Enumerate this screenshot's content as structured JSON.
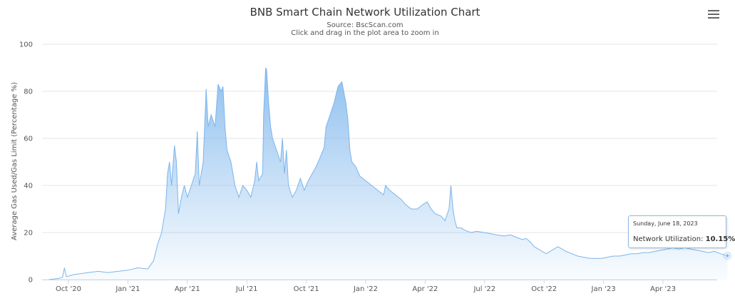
{
  "chart_data": {
    "type": "area",
    "title": "BNB Smart Chain Network Utilization Chart",
    "subtitle": "Source: BscScan.com",
    "instruction": "Click and drag in the plot area to zoom in",
    "ylabel": "Average Gas Used/Gas Limit (Percentage %)",
    "xlabel": "",
    "ylim": [
      0,
      100
    ],
    "yticks": [
      0,
      20,
      40,
      60,
      80,
      100
    ],
    "xticks": [
      {
        "month": 1,
        "label": "Oct '20"
      },
      {
        "month": 4,
        "label": "Jan '21"
      },
      {
        "month": 7,
        "label": "Apr '21"
      },
      {
        "month": 10,
        "label": "Jul '21"
      },
      {
        "month": 13,
        "label": "Oct '21"
      },
      {
        "month": 16,
        "label": "Jan '22"
      },
      {
        "month": 19,
        "label": "Apr '22"
      },
      {
        "month": 22,
        "label": "Jul '22"
      },
      {
        "month": 25,
        "label": "Oct '22"
      },
      {
        "month": 28,
        "label": "Jan '23"
      },
      {
        "month": 31,
        "label": "Apr '23"
      }
    ],
    "x_domain": [
      0,
      34.25
    ],
    "series": [
      {
        "name": "Network Utilization",
        "color": "#7cb5ec",
        "x_unit": "months since Sep 1, 2020",
        "points": [
          [
            0.0,
            0.0
          ],
          [
            0.5,
            0.5
          ],
          [
            0.7,
            1.0
          ],
          [
            0.8,
            5.0
          ],
          [
            0.9,
            1.2
          ],
          [
            1.2,
            2.0
          ],
          [
            1.6,
            2.5
          ],
          [
            2.0,
            3.0
          ],
          [
            2.5,
            3.5
          ],
          [
            3.0,
            3.0
          ],
          [
            3.5,
            3.5
          ],
          [
            4.0,
            4.0
          ],
          [
            4.5,
            5.0
          ],
          [
            5.0,
            4.5
          ],
          [
            5.3,
            8.0
          ],
          [
            5.5,
            15.0
          ],
          [
            5.7,
            20.0
          ],
          [
            5.9,
            30.0
          ],
          [
            6.0,
            45.0
          ],
          [
            6.1,
            50.0
          ],
          [
            6.2,
            40.0
          ],
          [
            6.35,
            57.0
          ],
          [
            6.45,
            50.0
          ],
          [
            6.55,
            28.0
          ],
          [
            6.7,
            35.0
          ],
          [
            6.85,
            40.0
          ],
          [
            7.0,
            35.0
          ],
          [
            7.2,
            40.0
          ],
          [
            7.4,
            45.0
          ],
          [
            7.5,
            63.0
          ],
          [
            7.6,
            40.0
          ],
          [
            7.8,
            50.0
          ],
          [
            7.95,
            81.0
          ],
          [
            8.05,
            65.0
          ],
          [
            8.2,
            70.0
          ],
          [
            8.4,
            65.0
          ],
          [
            8.55,
            83.0
          ],
          [
            8.7,
            80.0
          ],
          [
            8.8,
            82.0
          ],
          [
            8.9,
            65.0
          ],
          [
            9.0,
            55.0
          ],
          [
            9.2,
            50.0
          ],
          [
            9.4,
            40.0
          ],
          [
            9.6,
            35.0
          ],
          [
            9.8,
            40.0
          ],
          [
            10.0,
            38.0
          ],
          [
            10.2,
            35.0
          ],
          [
            10.4,
            42.0
          ],
          [
            10.5,
            50.0
          ],
          [
            10.6,
            42.0
          ],
          [
            10.8,
            45.0
          ],
          [
            10.85,
            70.0
          ],
          [
            10.9,
            80.0
          ],
          [
            10.95,
            90.0
          ],
          [
            11.0,
            89.0
          ],
          [
            11.1,
            75.0
          ],
          [
            11.2,
            65.0
          ],
          [
            11.3,
            60.0
          ],
          [
            11.5,
            55.0
          ],
          [
            11.7,
            50.0
          ],
          [
            11.8,
            60.0
          ],
          [
            11.9,
            45.0
          ],
          [
            12.0,
            55.0
          ],
          [
            12.1,
            40.0
          ],
          [
            12.3,
            35.0
          ],
          [
            12.5,
            38.0
          ],
          [
            12.7,
            43.0
          ],
          [
            12.9,
            38.0
          ],
          [
            13.0,
            40.0
          ],
          [
            13.1,
            42.0
          ],
          [
            13.3,
            45.0
          ],
          [
            13.5,
            48.0
          ],
          [
            13.7,
            52.0
          ],
          [
            13.9,
            56.0
          ],
          [
            14.0,
            65.0
          ],
          [
            14.2,
            70.0
          ],
          [
            14.4,
            75.0
          ],
          [
            14.6,
            82.0
          ],
          [
            14.8,
            84.0
          ],
          [
            15.0,
            75.0
          ],
          [
            15.1,
            68.0
          ],
          [
            15.2,
            55.0
          ],
          [
            15.3,
            50.0
          ],
          [
            15.5,
            48.0
          ],
          [
            15.7,
            44.0
          ],
          [
            16.0,
            42.0
          ],
          [
            16.3,
            40.0
          ],
          [
            16.6,
            38.0
          ],
          [
            16.9,
            36.0
          ],
          [
            17.0,
            40.0
          ],
          [
            17.2,
            38.0
          ],
          [
            17.5,
            36.0
          ],
          [
            17.8,
            34.0
          ],
          [
            18.0,
            32.0
          ],
          [
            18.3,
            30.0
          ],
          [
            18.6,
            30.0
          ],
          [
            18.9,
            32.0
          ],
          [
            19.1,
            33.0
          ],
          [
            19.3,
            30.0
          ],
          [
            19.5,
            28.0
          ],
          [
            19.8,
            27.0
          ],
          [
            20.0,
            25.0
          ],
          [
            20.2,
            30.0
          ],
          [
            20.3,
            40.0
          ],
          [
            20.4,
            30.0
          ],
          [
            20.5,
            25.0
          ],
          [
            20.6,
            22.0
          ],
          [
            20.8,
            22.0
          ],
          [
            21.0,
            21.0
          ],
          [
            21.3,
            20.0
          ],
          [
            21.6,
            20.5
          ],
          [
            22.0,
            20.0
          ],
          [
            22.3,
            19.5
          ],
          [
            22.6,
            19.0
          ],
          [
            23.0,
            18.5
          ],
          [
            23.3,
            19.0
          ],
          [
            23.6,
            18.0
          ],
          [
            23.9,
            17.0
          ],
          [
            24.1,
            17.5
          ],
          [
            24.3,
            16.0
          ],
          [
            24.5,
            14.0
          ],
          [
            24.7,
            13.0
          ],
          [
            24.9,
            12.0
          ],
          [
            25.1,
            11.0
          ],
          [
            25.3,
            12.0
          ],
          [
            25.5,
            13.0
          ],
          [
            25.7,
            14.0
          ],
          [
            25.9,
            13.0
          ],
          [
            26.1,
            12.0
          ],
          [
            26.4,
            11.0
          ],
          [
            26.7,
            10.0
          ],
          [
            27.0,
            9.5
          ],
          [
            27.3,
            9.0
          ],
          [
            27.6,
            9.0
          ],
          [
            27.9,
            9.0
          ],
          [
            28.2,
            9.5
          ],
          [
            28.5,
            10.0
          ],
          [
            28.8,
            10.0
          ],
          [
            29.1,
            10.5
          ],
          [
            29.4,
            11.0
          ],
          [
            29.7,
            11.0
          ],
          [
            30.0,
            11.5
          ],
          [
            30.3,
            11.5
          ],
          [
            30.6,
            12.0
          ],
          [
            30.9,
            12.5
          ],
          [
            31.2,
            13.0
          ],
          [
            31.5,
            13.5
          ],
          [
            31.8,
            13.0
          ],
          [
            32.1,
            13.5
          ],
          [
            32.4,
            13.0
          ],
          [
            32.7,
            12.5
          ],
          [
            33.0,
            12.0
          ],
          [
            33.3,
            11.5
          ],
          [
            33.6,
            12.0
          ],
          [
            33.9,
            11.0
          ],
          [
            34.1,
            10.5
          ],
          [
            34.25,
            10.15
          ]
        ]
      }
    ],
    "tooltip": {
      "date": "Sunday, June 18, 2023",
      "label": "Network Utilization:",
      "value": "10.15%",
      "x": 34.25,
      "y": 10.15
    }
  }
}
